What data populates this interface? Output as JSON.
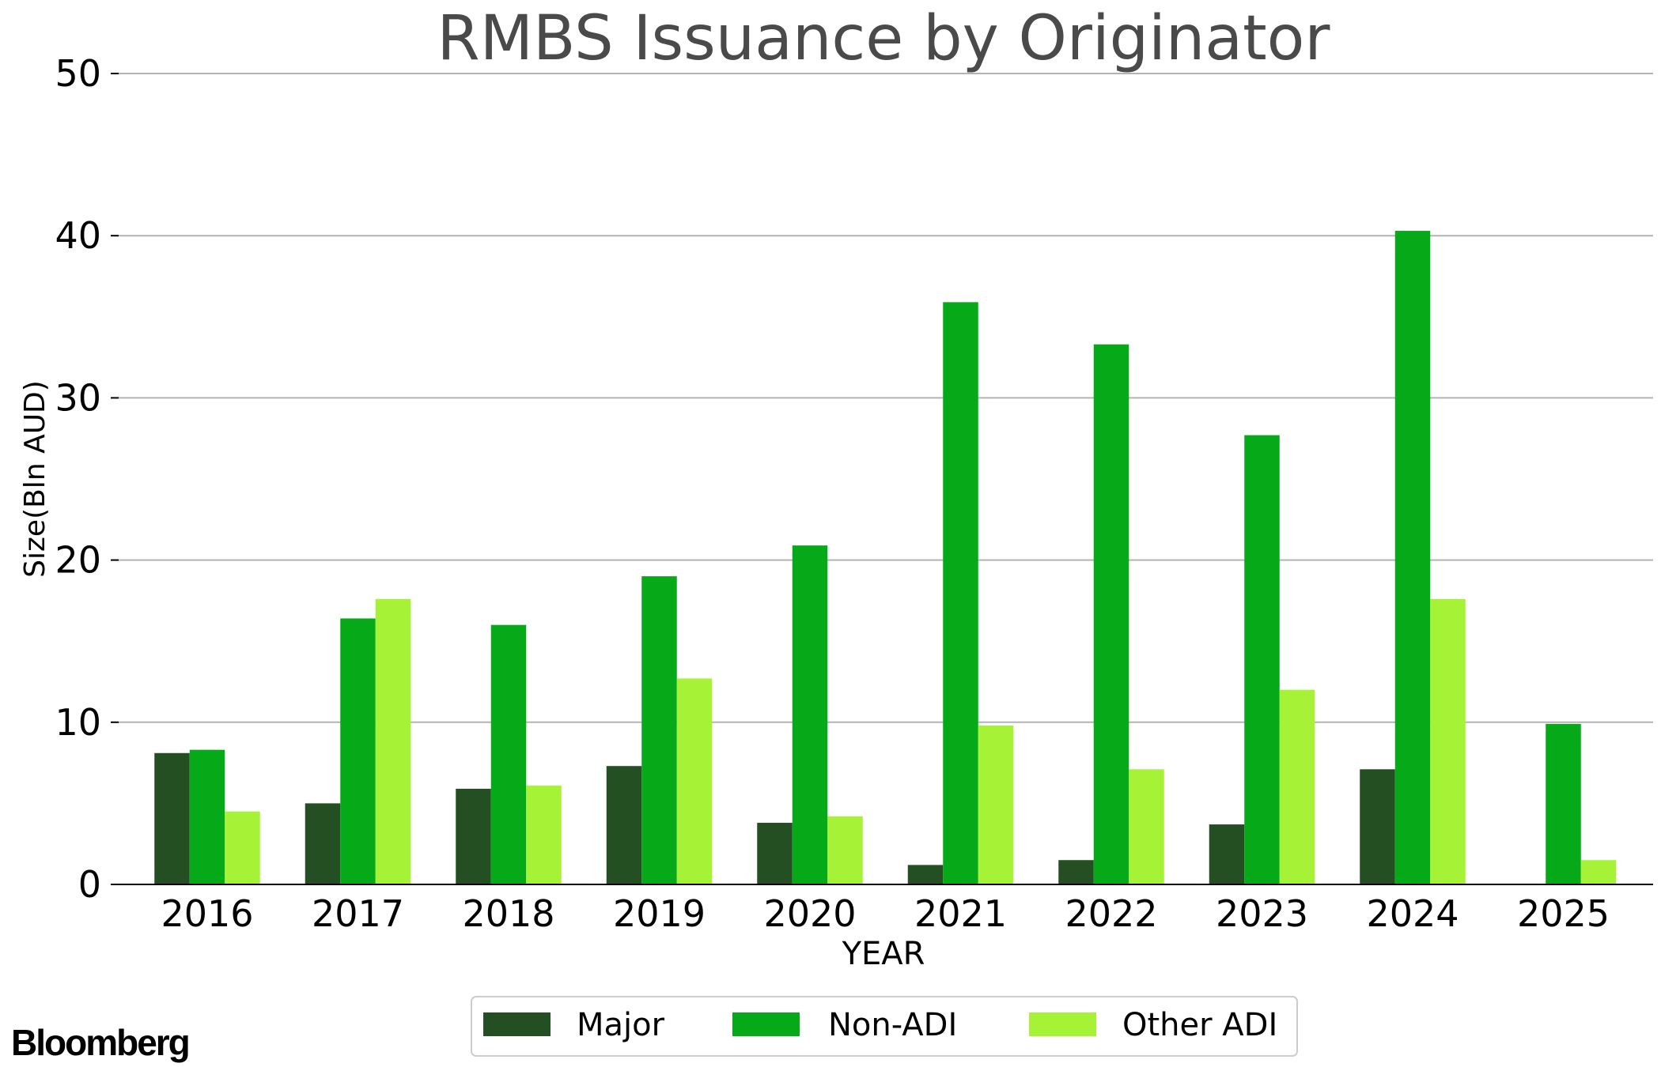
{
  "brand": "Bloomberg",
  "colors": {
    "major": "#244f22",
    "non_adi": "#06aa19",
    "other_adi": "#a6f236",
    "title": "#4a4a4a",
    "grid": "#b3b3b3",
    "text": "#000000"
  },
  "chart_data": {
    "type": "bar",
    "title": "RMBS Issuance by Originator",
    "xlabel": "YEAR",
    "ylabel": "Size(Bln AUD)",
    "categories": [
      "2016",
      "2017",
      "2018",
      "2019",
      "2020",
      "2021",
      "2022",
      "2023",
      "2024",
      "2025"
    ],
    "series": [
      {
        "name": "Major",
        "color": "#244f22",
        "values": [
          8.1,
          5.0,
          5.9,
          7.3,
          3.8,
          1.2,
          1.5,
          3.7,
          7.1,
          0
        ]
      },
      {
        "name": "Non-ADI",
        "color": "#06aa19",
        "values": [
          8.3,
          16.4,
          16.0,
          19.0,
          20.9,
          35.9,
          33.3,
          27.7,
          40.3,
          9.9
        ]
      },
      {
        "name": "Other ADI",
        "color": "#a6f236",
        "values": [
          4.5,
          17.6,
          6.1,
          12.7,
          4.2,
          9.8,
          7.1,
          12.0,
          17.6,
          1.5
        ]
      }
    ],
    "ylim": [
      0,
      50
    ],
    "yticks": [
      0,
      10,
      20,
      30,
      40,
      50
    ],
    "grid": true,
    "legend": "bottom-center"
  }
}
